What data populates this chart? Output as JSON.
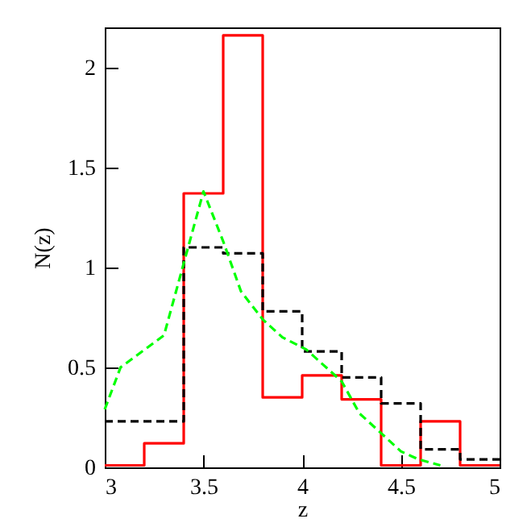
{
  "chart_data": {
    "type": "histogram",
    "xlabel": "z",
    "ylabel": "N(z)",
    "bins": [
      3.0,
      3.2,
      3.4,
      3.6,
      3.8,
      4.0,
      4.2,
      4.4,
      4.6,
      4.8,
      5.0
    ],
    "series": [
      {
        "color": "#ff0000",
        "line_style": "solid",
        "values": [
          0.01,
          0.12,
          1.37,
          2.16,
          0.35,
          0.46,
          0.34,
          0.01,
          0.23,
          0.01
        ]
      },
      {
        "color": "#000000",
        "line_style": "dashed",
        "values": [
          0.23,
          0.23,
          1.1,
          1.07,
          0.78,
          0.58,
          0.45,
          0.32,
          0.09,
          0.04
        ]
      },
      {
        "type": "line",
        "color": "#00ff00",
        "line_style": "dashed",
        "x": [
          3.0,
          3.08,
          3.3,
          3.5,
          3.6,
          3.69,
          3.8,
          3.9,
          4.02,
          4.2,
          4.29,
          4.39,
          4.5,
          4.59,
          4.7
        ],
        "values": [
          0.29,
          0.5,
          0.66,
          1.38,
          1.13,
          0.88,
          0.74,
          0.65,
          0.59,
          0.43,
          0.27,
          0.18,
          0.08,
          0.04,
          0.01
        ]
      }
    ],
    "xlim": [
      3,
      5
    ],
    "xticks": [
      3,
      3.5,
      4,
      4.5,
      5
    ],
    "ylim": [
      0,
      2.2
    ],
    "yticks": [
      0,
      0.5,
      1,
      1.5,
      2
    ],
    "grid": false
  }
}
